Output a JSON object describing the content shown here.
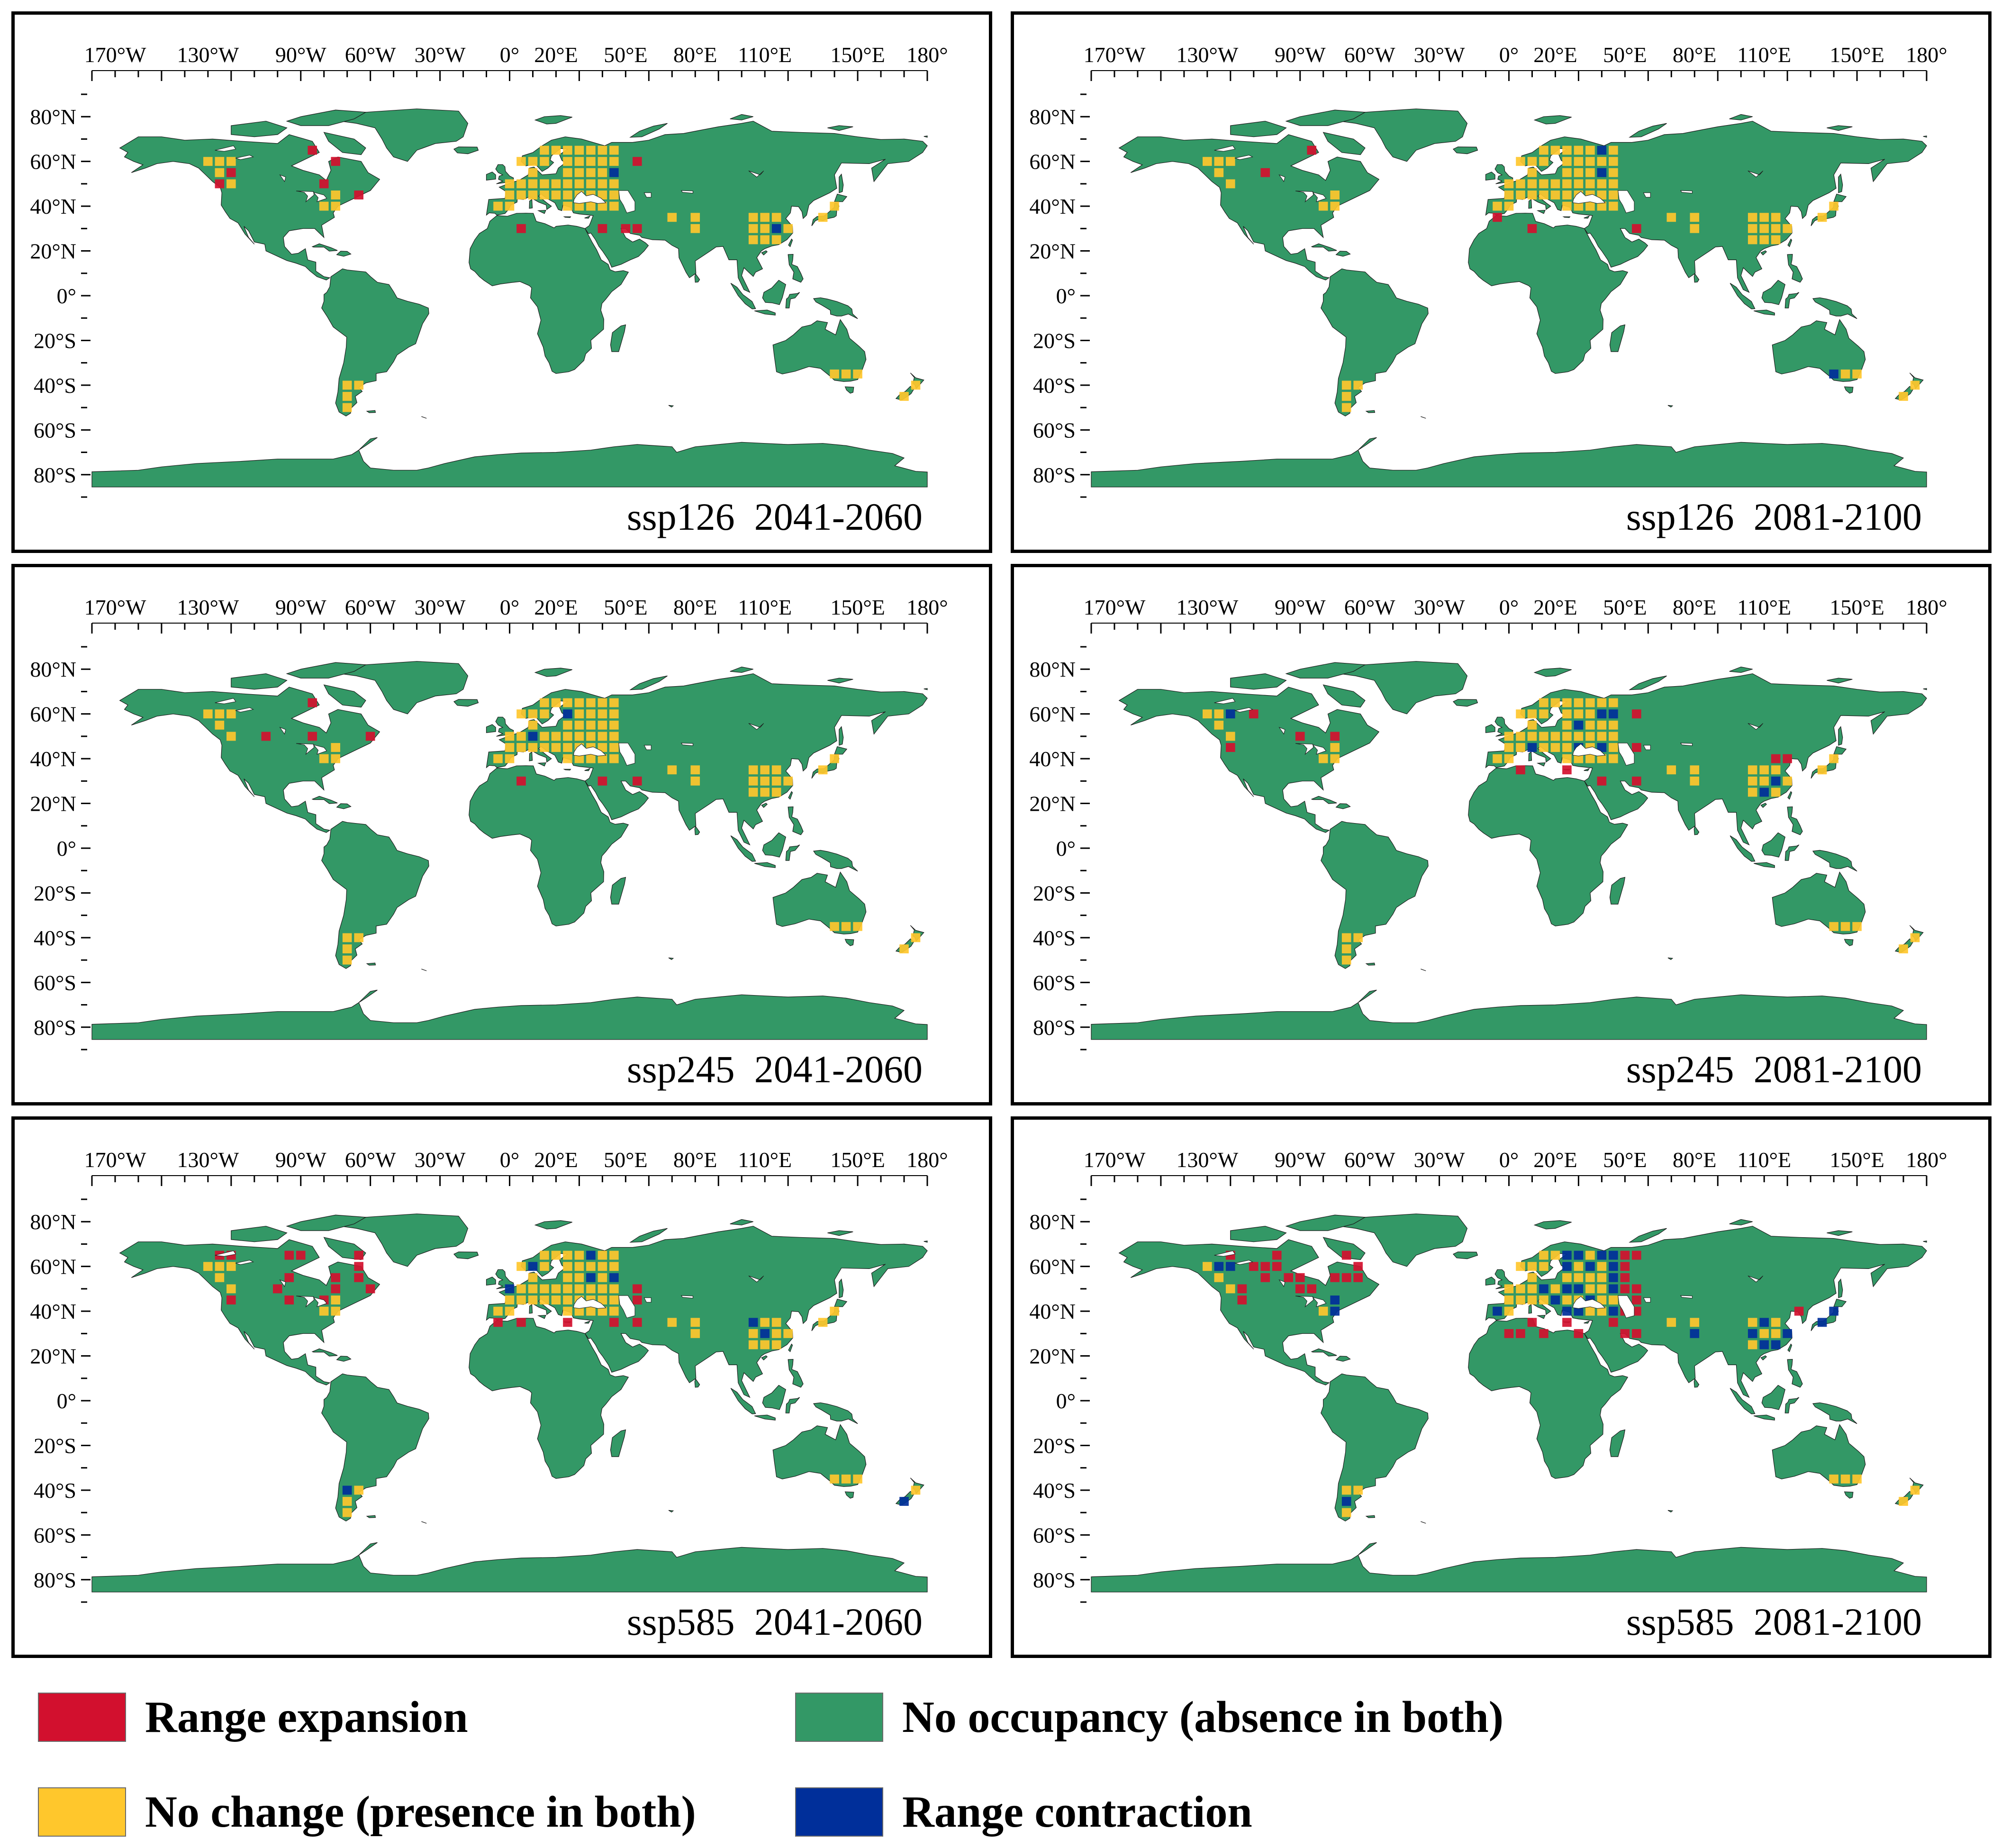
{
  "colors": {
    "range_expansion": "#d2102e",
    "no_change": "#ffc72c",
    "no_occupancy": "#339866",
    "range_contraction": "#002f9a"
  },
  "lon_ticks": [
    "170°W",
    "130°W",
    "90°W",
    "60°W",
    "30°W",
    "0°",
    "20°E",
    "50°E",
    "80°E",
    "110°E",
    "150°E",
    "180°"
  ],
  "lat_ticks": [
    "80°N",
    "60°N",
    "40°N",
    "20°N",
    "0°",
    "20°S",
    "40°S",
    "60°S",
    "80°S"
  ],
  "panels": [
    {
      "scenario": "ssp126",
      "period": "2041-2060",
      "expansion": "low",
      "contraction": "low"
    },
    {
      "scenario": "ssp126",
      "period": "2081-2100",
      "expansion": "low",
      "contraction": "low"
    },
    {
      "scenario": "ssp245",
      "period": "2041-2060",
      "expansion": "low",
      "contraction": "low"
    },
    {
      "scenario": "ssp245",
      "period": "2081-2100",
      "expansion": "medium",
      "contraction": "medium"
    },
    {
      "scenario": "ssp585",
      "period": "2041-2060",
      "expansion": "medium",
      "contraction": "medium"
    },
    {
      "scenario": "ssp585",
      "period": "2081-2100",
      "expansion": "high",
      "contraction": "high"
    }
  ],
  "legend": [
    {
      "key": "range_expansion",
      "label": "Range expansion"
    },
    {
      "key": "no_occupancy",
      "label": "No occupancy (absence in both)"
    },
    {
      "key": "no_change",
      "label": "No change (presence in both)"
    },
    {
      "key": "range_contraction",
      "label": "Range contraction"
    }
  ]
}
